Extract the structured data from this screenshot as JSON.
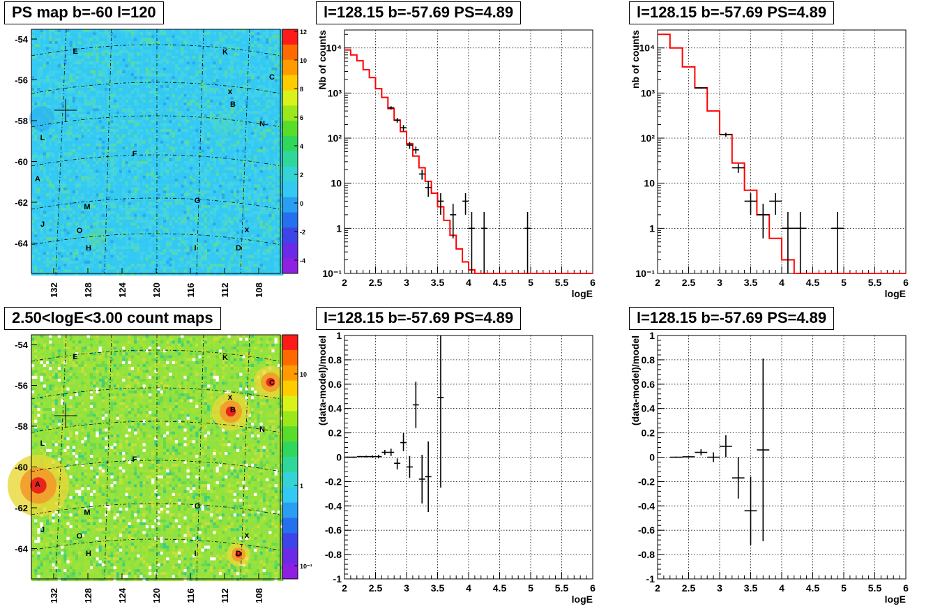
{
  "titles": {
    "ps_map": "PS map b=-60 l=120",
    "count_map": "2.50<logE<3.00 count maps",
    "spec1": "l=128.15 b=-57.69 PS=4.89",
    "spec2": "l=128.15 b=-57.69 PS=4.89",
    "res1": "l=128.15 b=-57.69 PS=4.89",
    "res2": "l=128.15 b=-57.69 PS=4.89"
  },
  "colors": {
    "hist_line": "#ff0000",
    "data_points": "#000000"
  },
  "chart_data": [
    {
      "id": "ps_map",
      "type": "heatmap",
      "title": "PS map b=-60 l=120",
      "x_ticks": [
        "132",
        "128",
        "124",
        "120",
        "116",
        "112",
        "108"
      ],
      "y_ticks": [
        "-54",
        "-56",
        "-58",
        "-60",
        "-62",
        "-64"
      ],
      "colorbar_ticks": [
        "12",
        "10",
        "8",
        "6",
        "4",
        "2",
        "0",
        "-2",
        "-4"
      ],
      "colorbar_range": [
        -5,
        12
      ],
      "sources": [
        "A",
        "B",
        "C",
        "D",
        "E",
        "F",
        "G",
        "H",
        "I",
        "J",
        "K",
        "L",
        "M",
        "N",
        "O"
      ],
      "markers": [
        "+",
        "x",
        "x"
      ]
    },
    {
      "id": "count_map",
      "type": "heatmap",
      "title": "2.50<logE<3.00 count maps",
      "x_ticks": [
        "132",
        "128",
        "124",
        "120",
        "116",
        "112",
        "108"
      ],
      "y_ticks": [
        "-54",
        "-56",
        "-58",
        "-60",
        "-62",
        "-64"
      ],
      "colorbar_ticks": [
        "10",
        "1",
        "10⁻¹"
      ],
      "colorbar_scale": "log",
      "sources": [
        "A",
        "B",
        "C",
        "D",
        "E",
        "F",
        "G",
        "H",
        "I",
        "J",
        "K",
        "L",
        "M",
        "N",
        "O"
      ],
      "markers": [
        "+",
        "x",
        "x"
      ]
    },
    {
      "id": "spec1",
      "type": "line",
      "title": "l=128.15 b=-57.69 PS=4.89",
      "xlabel": "logE",
      "ylabel": "Nb of counts",
      "xlim": [
        2,
        6
      ],
      "ylim": [
        0.1,
        25000
      ],
      "yscale": "log",
      "x_ticks": [
        "2",
        "2.5",
        "3",
        "3.5",
        "4",
        "4.5",
        "5",
        "5.5",
        "6"
      ],
      "y_ticks": [
        "10⁻¹",
        "1",
        "10",
        "10²",
        "10³",
        "10⁴"
      ],
      "grid": true,
      "model": {
        "edges": [
          2.0,
          2.1,
          2.2,
          2.3,
          2.4,
          2.5,
          2.6,
          2.7,
          2.8,
          2.9,
          3.0,
          3.1,
          3.2,
          3.3,
          3.4,
          3.5,
          3.6,
          3.7,
          3.8,
          3.9,
          4.0,
          4.1,
          4.2,
          6.0
        ],
        "values": [
          9000,
          7000,
          5200,
          3300,
          2200,
          1250,
          800,
          450,
          250,
          140,
          75,
          40,
          22,
          11,
          6,
          3,
          1.5,
          0.7,
          0.35,
          0.18,
          0.12,
          0.1,
          0.1
        ]
      },
      "data": [
        {
          "x": 2.75,
          "y": 470,
          "xerr": 0.05,
          "ylo": 430,
          "yhi": 510
        },
        {
          "x": 2.85,
          "y": 250,
          "xerr": 0.05,
          "ylo": 220,
          "yhi": 280
        },
        {
          "x": 2.95,
          "y": 170,
          "xerr": 0.05,
          "ylo": 145,
          "yhi": 195
        },
        {
          "x": 3.05,
          "y": 70,
          "xerr": 0.05,
          "ylo": 58,
          "yhi": 82
        },
        {
          "x": 3.15,
          "y": 55,
          "xerr": 0.05,
          "ylo": 45,
          "yhi": 65
        },
        {
          "x": 3.25,
          "y": 16,
          "xerr": 0.05,
          "ylo": 12,
          "yhi": 20
        },
        {
          "x": 3.35,
          "y": 8,
          "xerr": 0.05,
          "ylo": 5,
          "yhi": 11
        },
        {
          "x": 3.55,
          "y": 4,
          "xerr": 0.05,
          "ylo": 2,
          "yhi": 6
        },
        {
          "x": 3.75,
          "y": 2,
          "xerr": 0.05,
          "ylo": 0.6,
          "yhi": 3.5
        },
        {
          "x": 3.95,
          "y": 4,
          "xerr": 0.05,
          "ylo": 2,
          "yhi": 6
        },
        {
          "x": 4.05,
          "y": 1,
          "xerr": 0.05,
          "ylo": 0.1,
          "yhi": 2.3
        },
        {
          "x": 4.25,
          "y": 1,
          "xerr": 0.05,
          "ylo": 0.1,
          "yhi": 2.3
        },
        {
          "x": 4.95,
          "y": 1,
          "xerr": 0.05,
          "ylo": 0.1,
          "yhi": 2.3
        }
      ]
    },
    {
      "id": "spec2",
      "type": "line",
      "title": "l=128.15 b=-57.69 PS=4.89",
      "xlabel": "logE",
      "ylabel": "nb of counts",
      "xlim": [
        2,
        6
      ],
      "ylim": [
        0.1,
        25000
      ],
      "yscale": "log",
      "x_ticks": [
        "2",
        "2.5",
        "3",
        "3.5",
        "4",
        "4.5",
        "5",
        "5.5",
        "6"
      ],
      "y_ticks": [
        "10⁻¹",
        "1",
        "10",
        "10²",
        "10³",
        "10⁴"
      ],
      "grid": true,
      "model": {
        "edges": [
          2.0,
          2.2,
          2.4,
          2.6,
          2.8,
          3.0,
          3.2,
          3.4,
          3.6,
          3.8,
          4.0,
          4.2,
          6.0
        ],
        "values": [
          20000,
          10000,
          3800,
          1300,
          400,
          120,
          28,
          7,
          2,
          0.6,
          0.2,
          0.1
        ]
      },
      "data": [
        {
          "x": 2.7,
          "y": 1300,
          "xerr": 0.1,
          "ylo": 1250,
          "yhi": 1350
        },
        {
          "x": 3.1,
          "y": 120,
          "xerr": 0.1,
          "ylo": 108,
          "yhi": 132
        },
        {
          "x": 3.3,
          "y": 22,
          "xerr": 0.1,
          "ylo": 17,
          "yhi": 27
        },
        {
          "x": 3.5,
          "y": 4,
          "xerr": 0.1,
          "ylo": 2,
          "yhi": 6
        },
        {
          "x": 3.7,
          "y": 2,
          "xerr": 0.1,
          "ylo": 0.6,
          "yhi": 3.5
        },
        {
          "x": 3.9,
          "y": 4,
          "xerr": 0.1,
          "ylo": 2,
          "yhi": 6
        },
        {
          "x": 4.1,
          "y": 1,
          "xerr": 0.1,
          "ylo": 0.1,
          "yhi": 2.3
        },
        {
          "x": 4.3,
          "y": 1,
          "xerr": 0.1,
          "ylo": 0.1,
          "yhi": 2.3
        },
        {
          "x": 4.9,
          "y": 1,
          "xerr": 0.1,
          "ylo": 0.1,
          "yhi": 2.3
        }
      ]
    },
    {
      "id": "res1",
      "type": "scatter",
      "title": "l=128.15 b=-57.69 PS=4.89",
      "xlabel": "logE",
      "ylabel": "(data-model)/model",
      "xlim": [
        2,
        6
      ],
      "ylim": [
        -1,
        1
      ],
      "x_ticks": [
        "2",
        "2.5",
        "3",
        "3.5",
        "4",
        "4.5",
        "5",
        "5.5",
        "6"
      ],
      "y_ticks": [
        "1",
        "0.8",
        "0.6",
        "0.4",
        "0.2",
        "0",
        "-0.2",
        "-0.4",
        "-0.6",
        "-0.8",
        "-1"
      ],
      "grid": true,
      "data": [
        {
          "x": 2.05,
          "y": 0.0,
          "xerr": 0.05,
          "ylo": -0.005,
          "yhi": 0.005
        },
        {
          "x": 2.15,
          "y": 0.0,
          "xerr": 0.05,
          "ylo": -0.005,
          "yhi": 0.005
        },
        {
          "x": 2.25,
          "y": 0.005,
          "xerr": 0.05,
          "ylo": 0.0,
          "yhi": 0.01
        },
        {
          "x": 2.35,
          "y": 0.005,
          "xerr": 0.05,
          "ylo": -0.002,
          "yhi": 0.012
        },
        {
          "x": 2.45,
          "y": 0.005,
          "xerr": 0.05,
          "ylo": -0.005,
          "yhi": 0.015
        },
        {
          "x": 2.55,
          "y": 0.005,
          "xerr": 0.05,
          "ylo": -0.01,
          "yhi": 0.02
        },
        {
          "x": 2.65,
          "y": 0.04,
          "xerr": 0.05,
          "ylo": 0.02,
          "yhi": 0.06
        },
        {
          "x": 2.75,
          "y": 0.04,
          "xerr": 0.05,
          "ylo": 0.01,
          "yhi": 0.07
        },
        {
          "x": 2.85,
          "y": -0.05,
          "xerr": 0.05,
          "ylo": -0.1,
          "yhi": -0.01
        },
        {
          "x": 2.95,
          "y": 0.12,
          "xerr": 0.05,
          "ylo": 0.05,
          "yhi": 0.2
        },
        {
          "x": 3.05,
          "y": -0.08,
          "xerr": 0.05,
          "ylo": -0.17,
          "yhi": 0.01
        },
        {
          "x": 3.15,
          "y": 0.43,
          "xerr": 0.05,
          "ylo": 0.24,
          "yhi": 0.62
        },
        {
          "x": 3.25,
          "y": -0.18,
          "xerr": 0.05,
          "ylo": -0.38,
          "yhi": 0.02
        },
        {
          "x": 3.35,
          "y": -0.16,
          "xerr": 0.05,
          "ylo": -0.45,
          "yhi": 0.13
        },
        {
          "x": 3.55,
          "y": 0.49,
          "xerr": 0.05,
          "ylo": -0.25,
          "yhi": 1.0
        }
      ]
    },
    {
      "id": "res2",
      "type": "scatter",
      "title": "l=128.15 b=-57.69 PS=4.89",
      "xlabel": "logE",
      "ylabel": "(data-model)/model",
      "xlim": [
        2,
        6
      ],
      "ylim": [
        -1,
        1
      ],
      "x_ticks": [
        "2",
        "2.5",
        "3",
        "3.5",
        "4",
        "4.5",
        "5",
        "5.5",
        "6"
      ],
      "y_ticks": [
        "1",
        "0.8",
        "0.6",
        "0.4",
        "0.2",
        "0",
        "-0.2",
        "-0.4",
        "-0.6",
        "-0.8",
        "-1"
      ],
      "grid": true,
      "data": [
        {
          "x": 2.3,
          "y": 0.0,
          "xerr": 0.1,
          "ylo": -0.005,
          "yhi": 0.005
        },
        {
          "x": 2.5,
          "y": 0.003,
          "xerr": 0.1,
          "ylo": -0.005,
          "yhi": 0.01
        },
        {
          "x": 2.7,
          "y": 0.04,
          "xerr": 0.1,
          "ylo": 0.015,
          "yhi": 0.065
        },
        {
          "x": 2.9,
          "y": 0.0,
          "xerr": 0.1,
          "ylo": -0.04,
          "yhi": 0.04
        },
        {
          "x": 3.1,
          "y": 0.09,
          "xerr": 0.1,
          "ylo": 0.0,
          "yhi": 0.18
        },
        {
          "x": 3.3,
          "y": -0.17,
          "xerr": 0.1,
          "ylo": -0.34,
          "yhi": 0.0
        },
        {
          "x": 3.5,
          "y": -0.44,
          "xerr": 0.1,
          "ylo": -0.72,
          "yhi": -0.16
        },
        {
          "x": 3.7,
          "y": 0.06,
          "xerr": 0.1,
          "ylo": -0.69,
          "yhi": 0.81
        }
      ]
    }
  ]
}
